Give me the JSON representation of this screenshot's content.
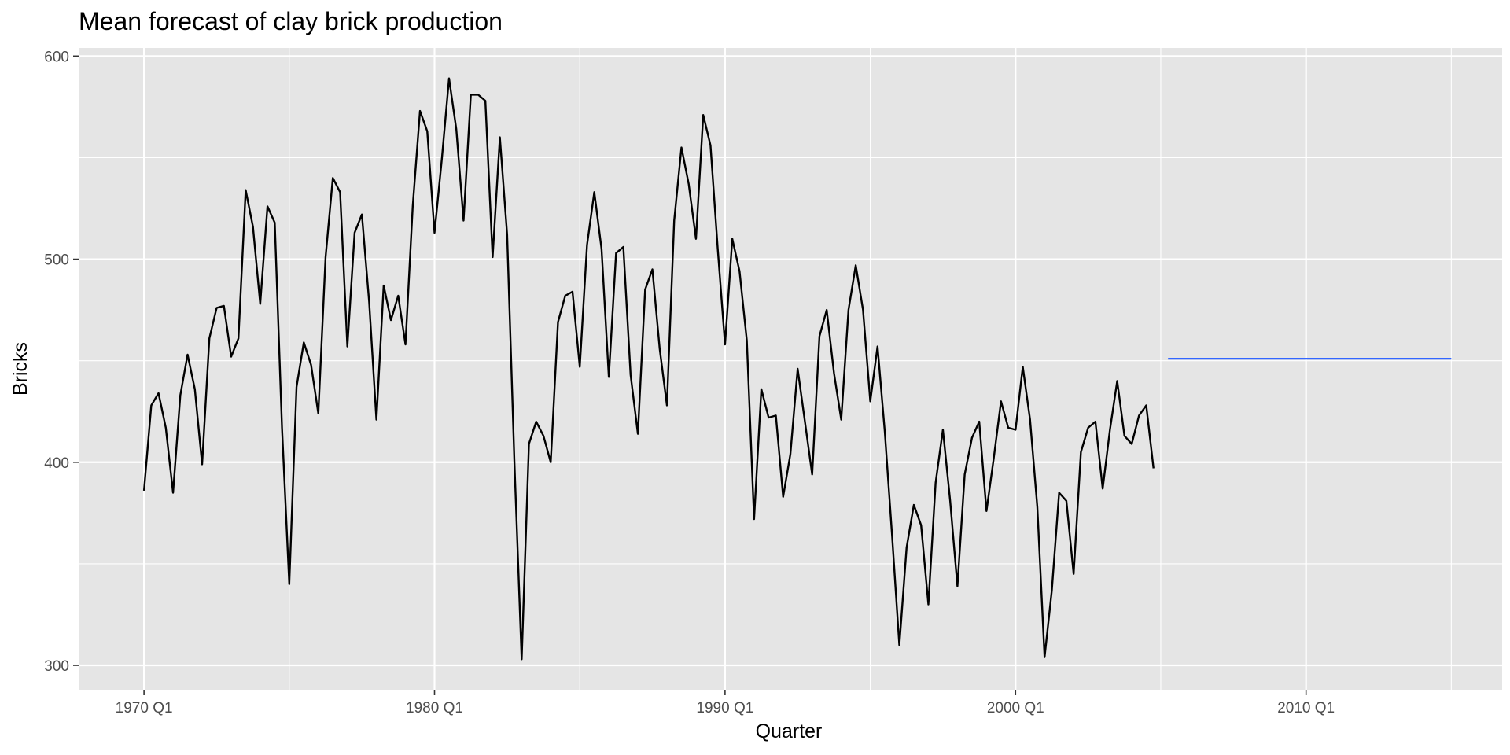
{
  "chart_data": {
    "type": "line",
    "title": "Mean forecast of clay brick production",
    "xlabel": "Quarter",
    "ylabel": "Bricks",
    "ylim": [
      288,
      604
    ],
    "yticks": [
      300,
      400,
      500,
      600
    ],
    "xticks": [
      {
        "year": 1970,
        "label": "1970 Q1"
      },
      {
        "year": 1980,
        "label": "1980 Q1"
      },
      {
        "year": 1990,
        "label": "1990 Q1"
      },
      {
        "year": 2000,
        "label": "2000 Q1"
      },
      {
        "year": 2010,
        "label": "2010 Q1"
      }
    ],
    "x_start": "1970 Q1",
    "grid": true,
    "colors": {
      "panel": "#e5e5e5",
      "grid": "#ffffff",
      "history": "#000000",
      "forecast": "#3366ff"
    },
    "series": [
      {
        "values": [
          386,
          428,
          434,
          417,
          385,
          433,
          453,
          436,
          399,
          461,
          476,
          477,
          452,
          461,
          534,
          516,
          478,
          526,
          518,
          417,
          340,
          437,
          459,
          448,
          424,
          501,
          540,
          533,
          457,
          513,
          522,
          479,
          421,
          487,
          470,
          482,
          458,
          526,
          573,
          563,
          513,
          549,
          589,
          564,
          519,
          581,
          581,
          578,
          501,
          560,
          512,
          400,
          303,
          409,
          420,
          413,
          400,
          469,
          482,
          484,
          447,
          507,
          533,
          505,
          442,
          503,
          506,
          443,
          414,
          485,
          495,
          456,
          428,
          519,
          555,
          537,
          510,
          571,
          556,
          505,
          458,
          510,
          494,
          460,
          372,
          436,
          422,
          423,
          383,
          404,
          446,
          420,
          394,
          462,
          475,
          444,
          421,
          475,
          497,
          475,
          430,
          457,
          415,
          364,
          310,
          358,
          379,
          369,
          330,
          390,
          416,
          381,
          339,
          394,
          412,
          420,
          376,
          402,
          430,
          417,
          416,
          447,
          421,
          378,
          304,
          337,
          385,
          381,
          345,
          405,
          417,
          420,
          387,
          416,
          440,
          413,
          409,
          423,
          428,
          397
        ]
      },
      {
        "x_start": "2005 Q2",
        "values": [
          451,
          451,
          451,
          451,
          451,
          451,
          451,
          451,
          451,
          451,
          451,
          451,
          451,
          451,
          451,
          451,
          451,
          451,
          451,
          451,
          451,
          451,
          451,
          451,
          451,
          451,
          451,
          451,
          451,
          451,
          451,
          451,
          451,
          451,
          451,
          451,
          451,
          451,
          451,
          451
        ]
      }
    ]
  }
}
